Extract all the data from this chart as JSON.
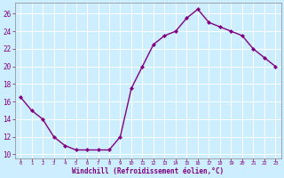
{
  "x": [
    0,
    1,
    2,
    3,
    4,
    5,
    6,
    7,
    8,
    9,
    10,
    11,
    12,
    13,
    14,
    15,
    16,
    17,
    18,
    19,
    20,
    21,
    22,
    23
  ],
  "y": [
    16.5,
    15.0,
    14.0,
    12.0,
    11.0,
    10.5,
    10.5,
    10.5,
    10.5,
    12.0,
    17.5,
    20.0,
    22.5,
    23.5,
    24.0,
    25.5,
    26.5,
    25.0,
    24.5,
    24.0,
    23.5,
    22.0,
    21.0,
    20.0
  ],
  "line_color": "#800080",
  "marker": "D",
  "marker_size": 2.2,
  "bg_color": "#cceeff",
  "grid_color": "#aaddcc",
  "xlabel": "Windchill (Refroidissement éolien,°C)",
  "xlabel_color": "#800080",
  "tick_color": "#800080",
  "ylabel_ticks": [
    10,
    12,
    14,
    16,
    18,
    20,
    22,
    24,
    26
  ],
  "xlim": [
    -0.5,
    23.5
  ],
  "ylim": [
    9.5,
    27.2
  ],
  "xtick_labels": [
    "0",
    "1",
    "2",
    "3",
    "4",
    "5",
    "6",
    "7",
    "8",
    "9",
    "10",
    "11",
    "12",
    "13",
    "14",
    "15",
    "16",
    "17",
    "18",
    "19",
    "20",
    "21",
    "22",
    "23"
  ]
}
